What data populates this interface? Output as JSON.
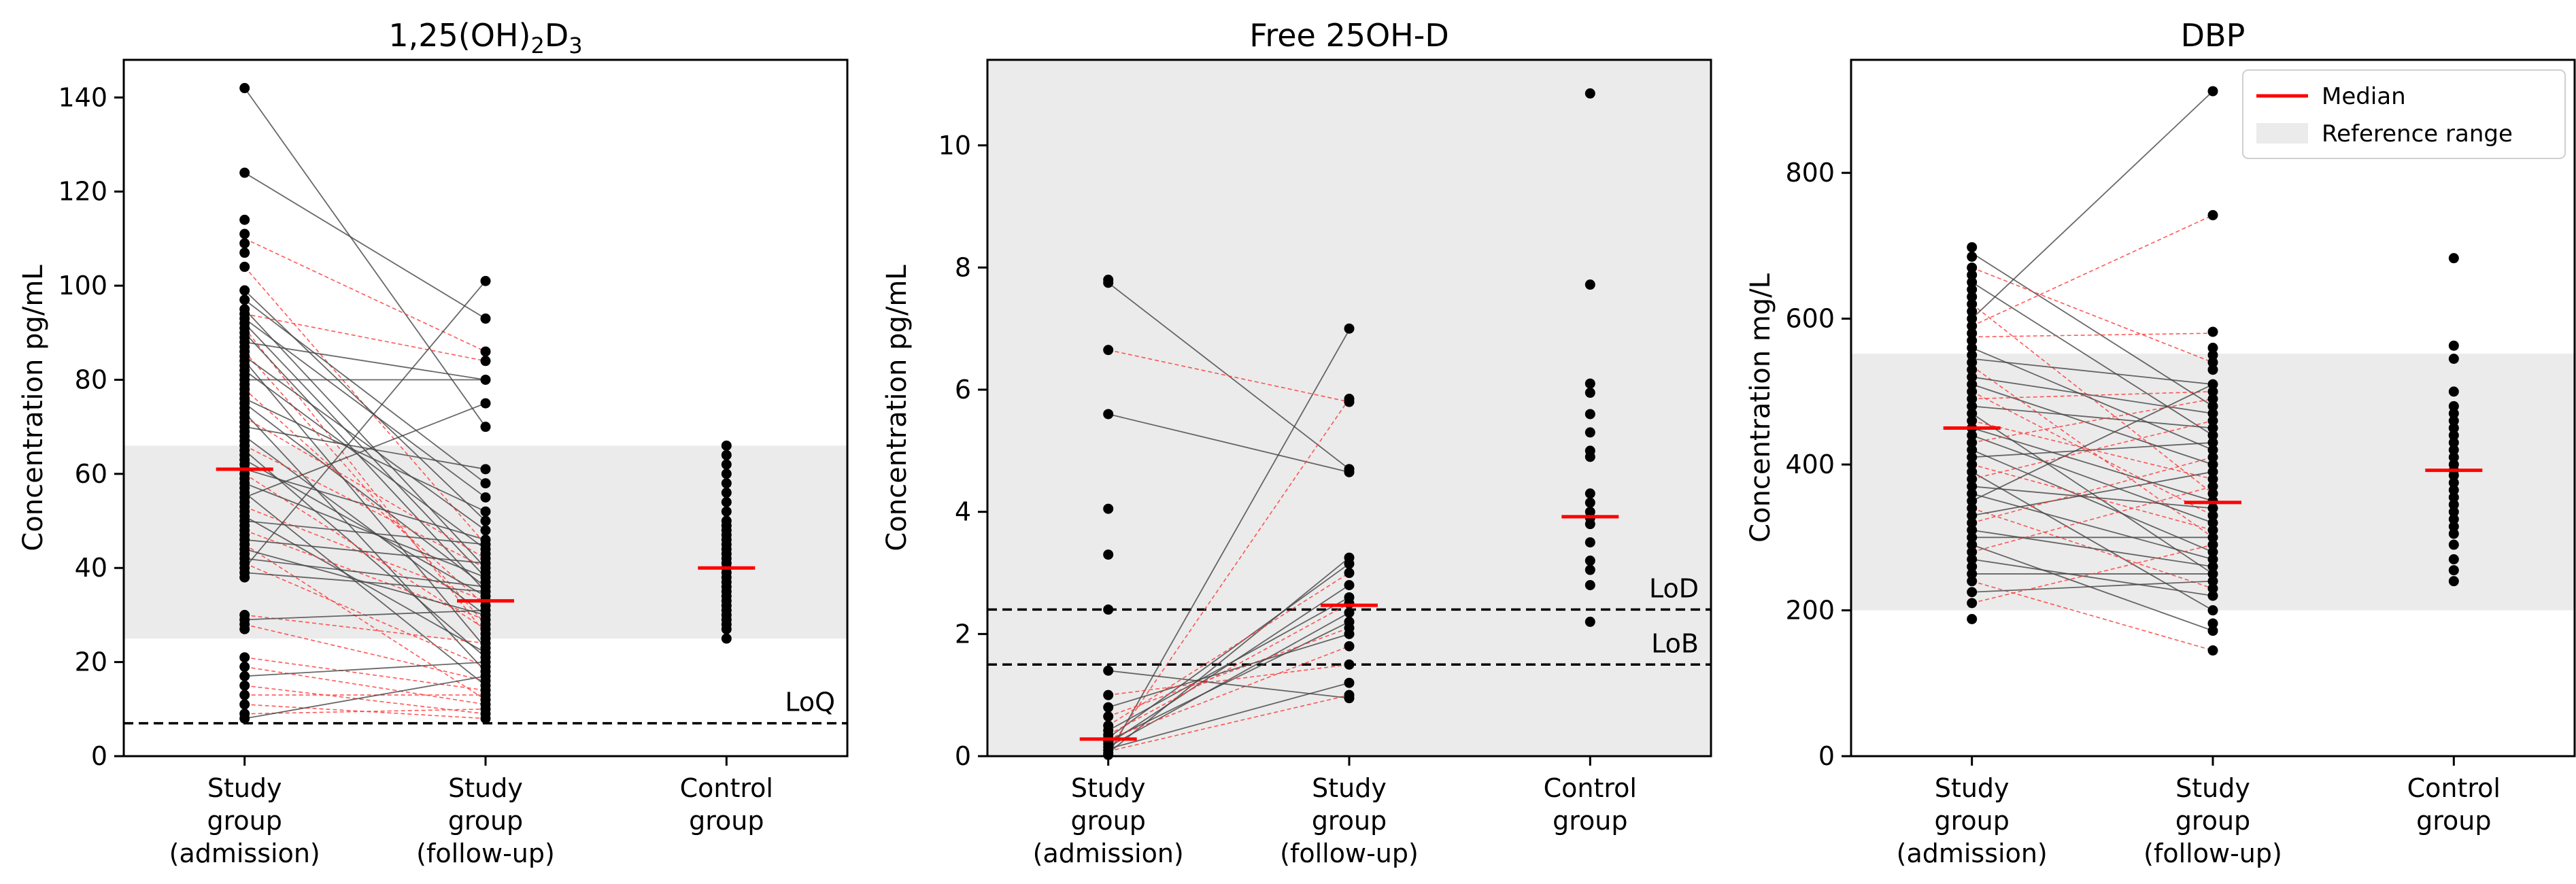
{
  "colors": {
    "reference_fill": "#ebebeb",
    "median": "#ff0000",
    "paired_red": "#ff3b3b",
    "paired_gray": "#444444",
    "point": "#000000"
  },
  "chart_data": [
    {
      "type": "scatter",
      "title": "1,25(OH)2D3",
      "title_parts": {
        "base": "1,25(OH)",
        "sub1": "2",
        "mid": "D",
        "sub2": "3"
      },
      "ylabel": "Concentration pg/mL",
      "ylim": [
        0,
        148
      ],
      "yticks": [
        "0",
        "20",
        "40",
        "60",
        "80",
        "100",
        "120",
        "140"
      ],
      "categories": [
        "Study group (admission)",
        "Study group (follow-up)",
        "Control group"
      ],
      "category_lines": [
        [
          "Study",
          "group",
          "(admission)"
        ],
        [
          "Study",
          "group",
          "(follow-up)"
        ],
        [
          "Control",
          "group"
        ]
      ],
      "reference_range": [
        25,
        66
      ],
      "thresholds": [
        {
          "label": "LoQ",
          "value": 7
        }
      ],
      "medians": [
        61,
        33,
        40
      ],
      "series": [
        {
          "values": [
            142,
            124,
            114,
            111,
            109,
            107,
            104,
            99,
            97,
            95,
            94,
            93,
            92,
            91,
            90,
            89,
            88,
            87,
            86,
            85,
            84,
            83,
            82,
            81,
            80,
            79,
            78,
            77,
            76,
            75,
            74,
            73,
            72,
            71,
            70,
            69,
            68,
            67,
            66,
            65,
            64,
            63,
            62,
            61,
            60,
            59,
            58,
            57,
            56,
            55,
            54,
            53,
            52,
            51,
            50,
            49,
            48,
            47,
            46,
            45,
            44,
            43,
            42,
            41,
            40,
            39,
            38,
            30,
            29,
            28,
            27,
            21,
            19,
            17,
            15,
            13,
            11,
            9,
            8
          ]
        },
        {
          "values": [
            101,
            93,
            86,
            84,
            80,
            75,
            70,
            61,
            58,
            55,
            52,
            50,
            48,
            46,
            45,
            44,
            43,
            42,
            41,
            40,
            39,
            38,
            37,
            36,
            35,
            34,
            33,
            32,
            31,
            30,
            29,
            28,
            27,
            26,
            25,
            24,
            23,
            22,
            21,
            20,
            19,
            18,
            17,
            16,
            15,
            14,
            13,
            12,
            11,
            10,
            9,
            8
          ]
        },
        {
          "values": [
            66,
            64,
            62,
            60,
            58,
            56,
            54,
            52,
            50,
            49,
            48,
            47,
            46,
            45,
            44,
            43,
            42,
            41,
            40,
            39,
            38,
            37,
            36,
            35,
            34,
            33,
            32,
            31,
            30,
            29,
            28,
            27,
            25
          ]
        }
      ],
      "pairs": [
        [
          142,
          70,
          "gray"
        ],
        [
          124,
          93,
          "gray"
        ],
        [
          110,
          86,
          "red"
        ],
        [
          104,
          45,
          "red"
        ],
        [
          99,
          50,
          "gray"
        ],
        [
          97,
          58,
          "gray"
        ],
        [
          95,
          40,
          "gray"
        ],
        [
          94,
          84,
          "red"
        ],
        [
          93,
          55,
          "gray"
        ],
        [
          92,
          38,
          "gray"
        ],
        [
          91,
          26,
          "red"
        ],
        [
          90,
          35,
          "gray"
        ],
        [
          88,
          80,
          "gray"
        ],
        [
          86,
          28,
          "red"
        ],
        [
          85,
          48,
          "gray"
        ],
        [
          84,
          23,
          "gray"
        ],
        [
          82,
          44,
          "gray"
        ],
        [
          80,
          80,
          "gray"
        ],
        [
          78,
          32,
          "red"
        ],
        [
          76,
          52,
          "gray"
        ],
        [
          75,
          36,
          "gray"
        ],
        [
          73,
          18,
          "gray"
        ],
        [
          72,
          42,
          "red"
        ],
        [
          70,
          61,
          "gray"
        ],
        [
          68,
          30,
          "gray"
        ],
        [
          66,
          40,
          "red"
        ],
        [
          65,
          21,
          "gray"
        ],
        [
          63,
          34,
          "gray"
        ],
        [
          61,
          46,
          "gray"
        ],
        [
          60,
          27,
          "red"
        ],
        [
          58,
          38,
          "gray"
        ],
        [
          56,
          15,
          "gray"
        ],
        [
          55,
          75,
          "gray"
        ],
        [
          53,
          33,
          "red"
        ],
        [
          51,
          22,
          "gray"
        ],
        [
          50,
          45,
          "gray"
        ],
        [
          48,
          29,
          "red"
        ],
        [
          46,
          41,
          "gray"
        ],
        [
          45,
          12,
          "red"
        ],
        [
          44,
          30,
          "gray"
        ],
        [
          42,
          36,
          "gray"
        ],
        [
          41,
          19,
          "red"
        ],
        [
          40,
          101,
          "gray"
        ],
        [
          39,
          35,
          "gray"
        ],
        [
          30,
          24,
          "red"
        ],
        [
          29,
          31,
          "gray"
        ],
        [
          28,
          16,
          "red"
        ],
        [
          21,
          14,
          "red"
        ],
        [
          19,
          11,
          "red"
        ],
        [
          17,
          20,
          "gray"
        ],
        [
          15,
          9,
          "red"
        ],
        [
          13,
          13,
          "red"
        ],
        [
          11,
          8,
          "red"
        ],
        [
          9,
          10,
          "red"
        ],
        [
          8,
          17,
          "gray"
        ]
      ]
    },
    {
      "type": "scatter",
      "title": "Free 25OH-D",
      "ylabel": "Concentration pg/mL",
      "ylim": [
        0,
        11.4
      ],
      "yticks": [
        "0",
        "2",
        "4",
        "6",
        "8",
        "10"
      ],
      "categories": [
        "Study group (admission)",
        "Study group (follow-up)",
        "Control group"
      ],
      "category_lines": [
        [
          "Study",
          "group",
          "(admission)"
        ],
        [
          "Study",
          "group",
          "(follow-up)"
        ],
        [
          "Control",
          "group"
        ]
      ],
      "reference_range": [
        0,
        11.4
      ],
      "thresholds": [
        {
          "label": "LoD",
          "value": 2.4
        },
        {
          "label": "LoB",
          "value": 1.5
        }
      ],
      "medians": [
        0.28,
        2.47,
        3.92
      ],
      "series": [
        {
          "values": [
            7.8,
            7.75,
            6.65,
            5.6,
            4.05,
            3.3,
            2.4,
            1.4,
            1.0,
            0.8,
            0.65,
            0.5,
            0.42,
            0.35,
            0.3,
            0.25,
            0.2,
            0.15,
            0.1,
            0.05,
            0.02
          ]
        },
        {
          "values": [
            7.0,
            5.85,
            5.8,
            4.7,
            4.65,
            3.25,
            3.15,
            3.0,
            2.8,
            2.6,
            2.5,
            2.35,
            2.2,
            2.1,
            2.0,
            1.8,
            1.5,
            1.2,
            1.0,
            0.95
          ]
        },
        {
          "values": [
            10.85,
            7.72,
            6.1,
            5.95,
            5.6,
            5.3,
            5.0,
            4.9,
            4.3,
            4.15,
            4.0,
            3.9,
            3.8,
            3.5,
            3.2,
            3.05,
            2.8,
            2.2
          ]
        }
      ],
      "pairs": [
        [
          7.75,
          4.7,
          "gray"
        ],
        [
          6.65,
          5.8,
          "red"
        ],
        [
          5.6,
          4.65,
          "gray"
        ],
        [
          0.02,
          6.98,
          "gray"
        ],
        [
          0.1,
          5.85,
          "red"
        ],
        [
          0.05,
          3.25,
          "gray"
        ],
        [
          0.3,
          3.15,
          "gray"
        ],
        [
          0.5,
          3.0,
          "red"
        ],
        [
          0.2,
          2.8,
          "gray"
        ],
        [
          0.42,
          2.6,
          "gray"
        ],
        [
          0.35,
          2.5,
          "red"
        ],
        [
          0.15,
          2.35,
          "gray"
        ],
        [
          0.25,
          2.2,
          "gray"
        ],
        [
          0.65,
          2.1,
          "red"
        ],
        [
          0.8,
          2.0,
          "gray"
        ],
        [
          0.28,
          1.8,
          "red"
        ],
        [
          1.0,
          1.5,
          "red"
        ],
        [
          0.12,
          1.2,
          "gray"
        ],
        [
          0.08,
          1.0,
          "red"
        ],
        [
          1.4,
          0.95,
          "gray"
        ]
      ]
    },
    {
      "type": "scatter",
      "title": "DBP",
      "ylabel": "Concentration mg/L",
      "ylim": [
        0,
        955
      ],
      "yticks": [
        "0",
        "200",
        "400",
        "600",
        "800"
      ],
      "categories": [
        "Study group (admission)",
        "Study group (follow-up)",
        "Control group"
      ],
      "category_lines": [
        [
          "Study",
          "group",
          "(admission)"
        ],
        [
          "Study",
          "group",
          "(follow-up)"
        ],
        [
          "Control",
          "group"
        ]
      ],
      "reference_range": [
        200,
        552
      ],
      "thresholds": [],
      "medians": [
        450,
        348,
        392
      ],
      "legend": {
        "position": "top-right",
        "entries": [
          "Median",
          "Reference range"
        ]
      },
      "series": [
        {
          "values": [
            698,
            685,
            670,
            660,
            650,
            640,
            630,
            620,
            610,
            600,
            590,
            580,
            570,
            560,
            550,
            540,
            530,
            520,
            510,
            500,
            490,
            480,
            470,
            460,
            450,
            440,
            430,
            420,
            410,
            400,
            390,
            380,
            370,
            360,
            350,
            340,
            330,
            320,
            310,
            300,
            290,
            280,
            270,
            260,
            250,
            240,
            225,
            210,
            188
          ]
        },
        {
          "values": [
            912,
            742,
            582,
            560,
            550,
            540,
            530,
            510,
            500,
            490,
            480,
            470,
            460,
            450,
            440,
            430,
            420,
            410,
            400,
            390,
            380,
            370,
            360,
            350,
            340,
            330,
            320,
            310,
            300,
            290,
            280,
            270,
            260,
            250,
            240,
            230,
            220,
            200,
            182,
            172,
            145
          ]
        },
        {
          "values": [
            683,
            563,
            545,
            500,
            480,
            470,
            460,
            450,
            440,
            430,
            420,
            410,
            400,
            392,
            385,
            375,
            365,
            355,
            345,
            335,
            325,
            315,
            305,
            290,
            270,
            255,
            240
          ]
        }
      ],
      "pairs": [
        [
          690,
          480,
          "gray"
        ],
        [
          670,
          540,
          "red"
        ],
        [
          650,
          440,
          "gray"
        ],
        [
          620,
          360,
          "red"
        ],
        [
          600,
          912,
          "gray"
        ],
        [
          590,
          742,
          "red"
        ],
        [
          575,
          580,
          "red"
        ],
        [
          560,
          420,
          "gray"
        ],
        [
          545,
          510,
          "gray"
        ],
        [
          535,
          300,
          "red"
        ],
        [
          520,
          470,
          "gray"
        ],
        [
          510,
          400,
          "gray"
        ],
        [
          500,
          330,
          "red"
        ],
        [
          490,
          500,
          "red"
        ],
        [
          480,
          450,
          "gray"
        ],
        [
          470,
          250,
          "gray"
        ],
        [
          460,
          380,
          "red"
        ],
        [
          450,
          350,
          "gray"
        ],
        [
          440,
          320,
          "gray"
        ],
        [
          430,
          490,
          "red"
        ],
        [
          420,
          280,
          "gray"
        ],
        [
          410,
          430,
          "gray"
        ],
        [
          400,
          310,
          "red"
        ],
        [
          390,
          200,
          "gray"
        ],
        [
          380,
          460,
          "red"
        ],
        [
          370,
          340,
          "gray"
        ],
        [
          360,
          270,
          "gray"
        ],
        [
          350,
          510,
          "gray"
        ],
        [
          340,
          230,
          "red"
        ],
        [
          330,
          390,
          "gray"
        ],
        [
          320,
          410,
          "red"
        ],
        [
          310,
          260,
          "gray"
        ],
        [
          300,
          300,
          "gray"
        ],
        [
          290,
          172,
          "gray"
        ],
        [
          280,
          370,
          "red"
        ],
        [
          270,
          220,
          "gray"
        ],
        [
          250,
          250,
          "gray"
        ],
        [
          240,
          145,
          "red"
        ],
        [
          225,
          240,
          "gray"
        ],
        [
          210,
          290,
          "red"
        ]
      ]
    }
  ]
}
